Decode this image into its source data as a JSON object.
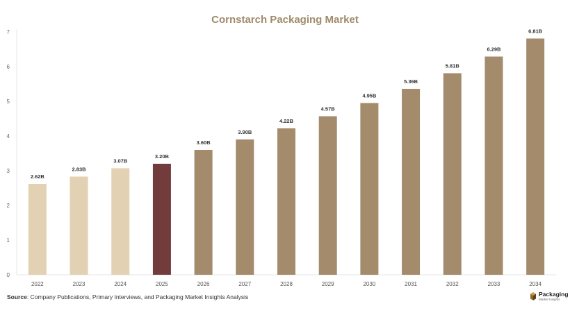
{
  "chart_data": {
    "type": "bar",
    "title": "Cornstarch Packaging Market",
    "xlabel": "",
    "ylabel": "",
    "categories": [
      "2022",
      "2023",
      "2024",
      "2025",
      "2026",
      "2027",
      "2028",
      "2029",
      "2030",
      "2031",
      "2032",
      "2033",
      "2034"
    ],
    "values": [
      2.62,
      2.83,
      3.07,
      3.2,
      3.6,
      3.9,
      4.22,
      4.57,
      4.95,
      5.36,
      5.81,
      6.29,
      6.81
    ],
    "value_labels": [
      "2.62B",
      "2.83B",
      "3.07B",
      "3.20B",
      "3.60B",
      "3.90B",
      "4.22B",
      "4.57B",
      "4.95B",
      "5.36B",
      "5.81B",
      "6.29B",
      "6.81B"
    ],
    "ylim": [
      0,
      7
    ],
    "yticks": [
      0,
      1,
      2,
      3,
      4,
      5,
      6,
      7
    ],
    "grid": false,
    "colors": {
      "historical": "#e3d1b3",
      "current": "#723c3c",
      "forecast": "#a38b6c",
      "title": "#a08b6b"
    },
    "bar_groups": [
      "historical",
      "historical",
      "historical",
      "current",
      "forecast",
      "forecast",
      "forecast",
      "forecast",
      "forecast",
      "forecast",
      "forecast",
      "forecast",
      "forecast"
    ]
  },
  "footer": {
    "source_label": "Source",
    "source_text": ": Company Publications, Primary Interviews, and Packaging Market Insights Analysis"
  },
  "brand": {
    "name": "Packaging",
    "sub": "Market Insights",
    "icon": "package-box-icon"
  }
}
